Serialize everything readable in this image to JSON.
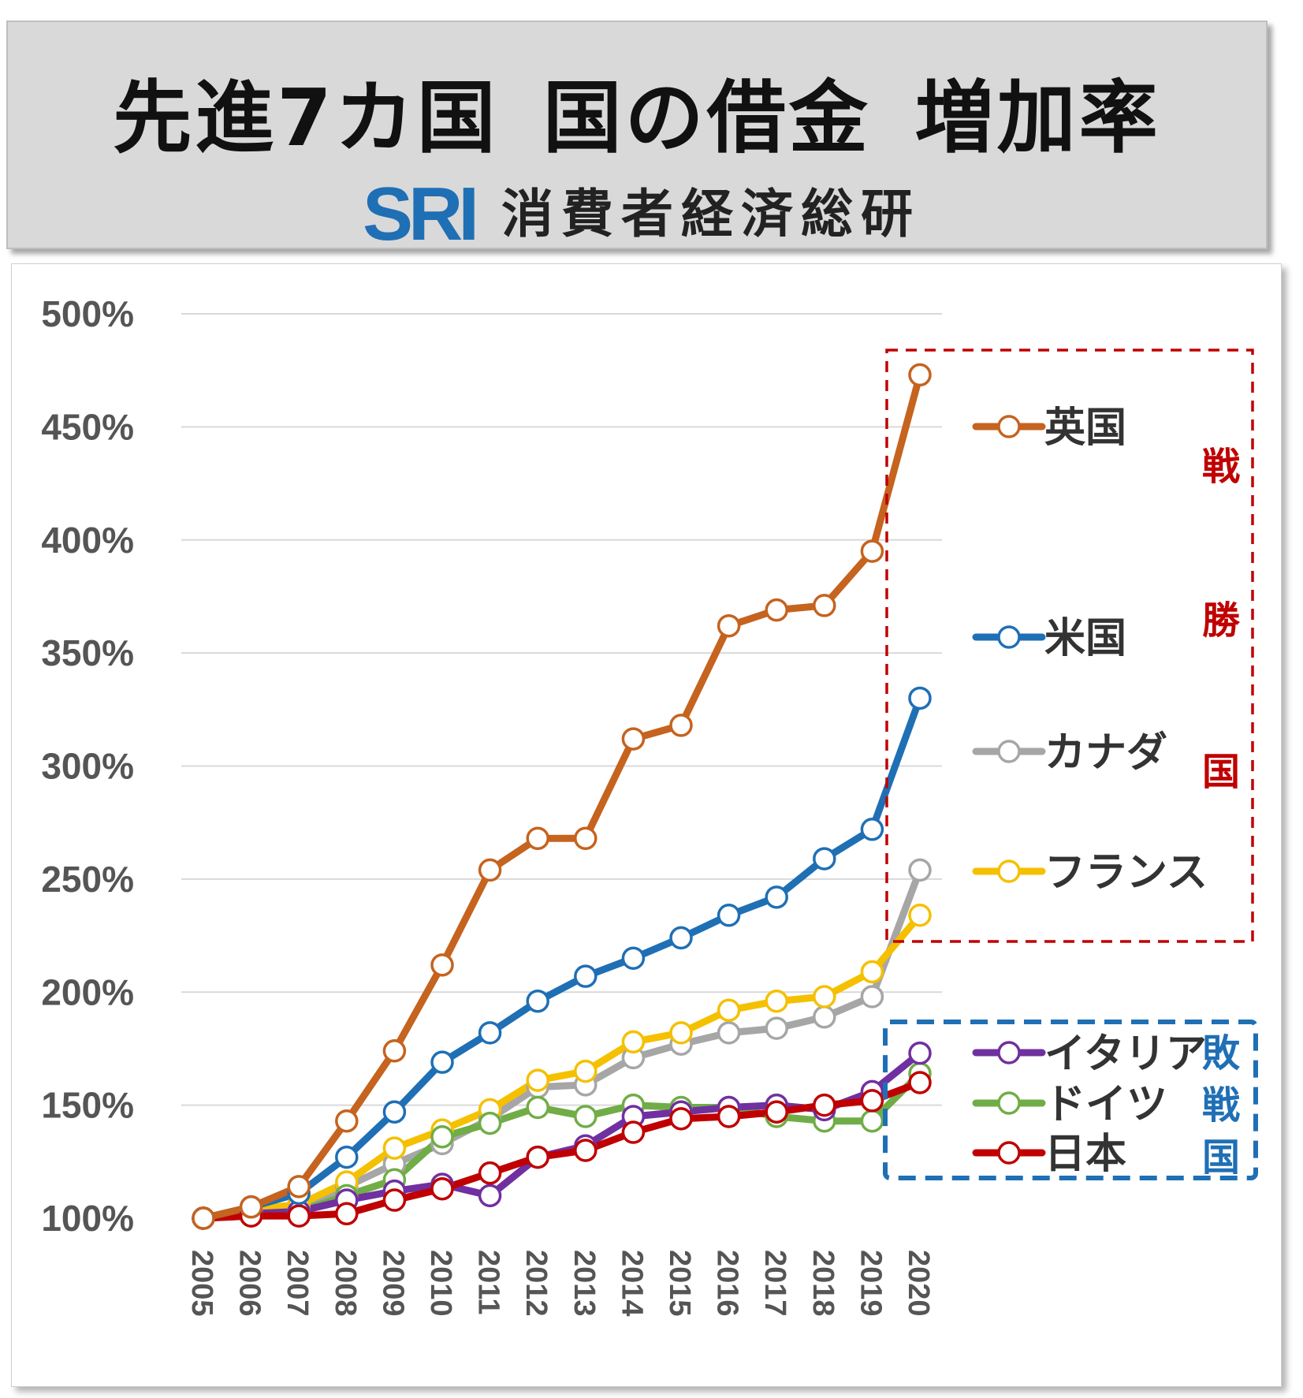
{
  "header": {
    "title_parts": [
      "先進7カ国",
      "国の借金",
      "増加率"
    ],
    "logo_mark": "SRI",
    "logo_text": "消費者経済総研"
  },
  "chart_data": {
    "type": "line",
    "title": "先進7カ国 国の借金 増加率",
    "xlabel": "",
    "ylabel": "",
    "categories": [
      "2005",
      "2006",
      "2007",
      "2008",
      "2009",
      "2010",
      "2011",
      "2012",
      "2013",
      "2014",
      "2015",
      "2016",
      "2017",
      "2018",
      "2019",
      "2020"
    ],
    "yticks": [
      "100%",
      "150%",
      "200%",
      "250%",
      "300%",
      "350%",
      "400%",
      "450%",
      "500%"
    ],
    "ylim": [
      100,
      500
    ],
    "grid": true,
    "series": [
      {
        "name": "英国",
        "color": "#c5631f",
        "values": [
          100,
          105,
          114,
          143,
          174,
          212,
          254,
          268,
          268,
          312,
          318,
          362,
          369,
          371,
          395,
          473
        ]
      },
      {
        "name": "米国",
        "color": "#1f6fb5",
        "values": [
          100,
          105,
          111,
          127,
          147,
          169,
          182,
          196,
          207,
          215,
          224,
          234,
          242,
          259,
          272,
          330
        ]
      },
      {
        "name": "カナダ",
        "color": "#a6a6a6",
        "values": [
          100,
          103,
          104,
          114,
          124,
          133,
          144,
          158,
          159,
          171,
          177,
          182,
          184,
          189,
          198,
          254
        ]
      },
      {
        "name": "フランス",
        "color": "#f5c000",
        "values": [
          100,
          104,
          106,
          116,
          131,
          139,
          148,
          161,
          165,
          178,
          182,
          192,
          196,
          198,
          209,
          234
        ]
      },
      {
        "name": "イタリア",
        "color": "#7030a0",
        "values": [
          100,
          102,
          103,
          108,
          112,
          115,
          110,
          127,
          132,
          145,
          147,
          149,
          150,
          148,
          156,
          173
        ]
      },
      {
        "name": "ドイツ",
        "color": "#70ad47",
        "values": [
          100,
          101,
          103,
          110,
          117,
          136,
          142,
          149,
          145,
          150,
          149,
          149,
          145,
          143,
          143,
          164
        ]
      },
      {
        "name": "日本",
        "color": "#c00000",
        "values": [
          100,
          101,
          101,
          102,
          108,
          113,
          120,
          127,
          130,
          138,
          144,
          145,
          147,
          150,
          152,
          160
        ]
      }
    ],
    "groups": {
      "winners": {
        "label": [
          "戦",
          "勝",
          "国"
        ],
        "color": "#c00000"
      },
      "losers": {
        "label": [
          "敗",
          "戦",
          "国"
        ],
        "color": "#1f6fb5"
      }
    }
  }
}
